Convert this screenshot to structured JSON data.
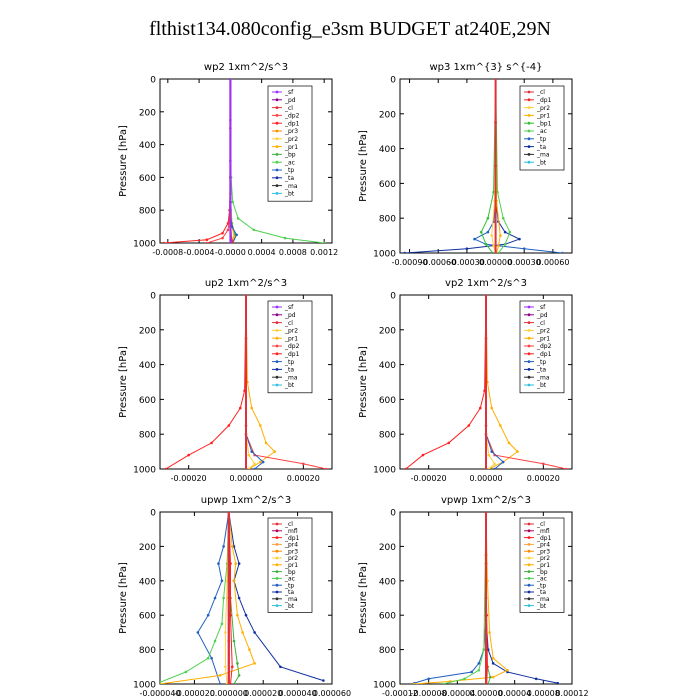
{
  "title": "flthist134.080config_e3sm  BUDGET at240E,29N",
  "colors": {
    "sf": "#9b30ff",
    "pd": "#8b008b",
    "cl": "#e0303a",
    "mfl": "#b0005a",
    "dp1": "#ff2020",
    "dp2": "#ff4040",
    "pr1": "#ffb000",
    "pr2": "#ffd040",
    "pr3": "#ff8c00",
    "pr4": "#ffa040",
    "bp": "#40b040",
    "bp1": "#30c030",
    "ac": "#50d050",
    "tp": "#2060c0",
    "ta": "#1030a0",
    "ma": "#303030",
    "bt": "#30c0e0"
  },
  "chart_data": [
    {
      "type": "line",
      "title": "wp2  1xm^2/s^3",
      "ylabel": "Pressure [hPa]",
      "xlim": [
        -0.0009,
        0.0013
      ],
      "ylim": [
        1000,
        0
      ],
      "xticks": [
        -0.0008,
        -0.0004,
        -0.0,
        0.0004,
        0.0008,
        0.0012
      ],
      "xticklabels": [
        "-0.0008",
        "-0.0004",
        "-0.0000",
        "0.0004",
        "0.0008",
        "0.0012"
      ],
      "yticks": [
        0,
        200,
        400,
        600,
        800,
        1000
      ],
      "legend": [
        "_sf",
        "_pd",
        "_cl",
        "_dp2",
        "_dp1",
        "_pr3",
        "_pr2",
        "_pr1",
        "_bp",
        "_ac",
        "_tp",
        "_ta",
        "_ma",
        "_bt"
      ],
      "series": [
        {
          "key": "dp1",
          "x": [
            0,
            0,
            0,
            -1e-05,
            -3e-05,
            -0.0001,
            -0.0003,
            -0.00085
          ],
          "y": [
            0,
            300,
            600,
            800,
            880,
            940,
            980,
            1000
          ]
        },
        {
          "key": "dp2",
          "x": [
            0,
            0,
            -1e-05,
            -3e-05,
            -0.0001,
            -0.0003
          ],
          "y": [
            0,
            600,
            850,
            920,
            970,
            1000
          ]
        },
        {
          "key": "ac",
          "x": [
            0,
            1e-05,
            3e-05,
            0.0001,
            0.0003,
            0.0007,
            0.0012
          ],
          "y": [
            0,
            600,
            750,
            850,
            920,
            970,
            1000
          ]
        },
        {
          "key": "bp",
          "x": [
            0,
            0,
            2e-05,
            6e-05,
            3e-05
          ],
          "y": [
            0,
            700,
            880,
            950,
            1000
          ]
        },
        {
          "key": "pr1",
          "x": [
            0,
            0,
            2e-05,
            5e-05,
            2e-05
          ],
          "y": [
            0,
            700,
            900,
            960,
            1000
          ]
        },
        {
          "key": "tp",
          "x": [
            0,
            0,
            2e-05,
            8e-05,
            3e-05
          ],
          "y": [
            0,
            800,
            900,
            950,
            1000
          ]
        },
        {
          "key": "cl",
          "x": [
            0,
            0,
            0,
            1e-05,
            3e-05
          ],
          "y": [
            0,
            600,
            900,
            970,
            1000
          ]
        },
        {
          "key": "sf",
          "x": [
            0,
            0,
            0,
            0,
            0
          ],
          "y": [
            0,
            250,
            500,
            750,
            1000
          ]
        }
      ]
    },
    {
      "type": "line",
      "title": "wp3  1xm^{3} s^{-4}",
      "ylabel": "Pressure [hPa]",
      "xlim": [
        -0.001,
        0.0008
      ],
      "ylim": [
        1000,
        0
      ],
      "xticks": [
        -0.0009,
        -0.0006,
        -0.0003,
        0.0,
        0.0003,
        0.0006
      ],
      "xticklabels": [
        "-0.00090",
        "-0.00060",
        "-0.00030",
        "0.00000",
        "0.00030",
        "0.00060"
      ],
      "yticks": [
        0,
        200,
        400,
        600,
        800,
        1000
      ],
      "legend": [
        "_cl",
        "_dp1",
        "_pr2",
        "_pr1",
        "_bp1",
        "_ac",
        "_tp",
        "_ta",
        "_ma",
        "_bt"
      ],
      "series": [
        {
          "key": "ta",
          "x": [
            0,
            0,
            3e-05,
            0.0001,
            0.00025,
            0.0001,
            -0.0003,
            -0.00095
          ],
          "y": [
            0,
            700,
            820,
            880,
            920,
            950,
            975,
            1000
          ]
        },
        {
          "key": "tp",
          "x": [
            0,
            0,
            -2e-05,
            -8e-05,
            -0.00022,
            -0.0001,
            0.0003,
            0.0007
          ],
          "y": [
            0,
            700,
            820,
            880,
            920,
            950,
            975,
            1000
          ]
        },
        {
          "key": "ac",
          "x": [
            0,
            2e-05,
            8e-05,
            0.00015,
            0.0001,
            3e-05
          ],
          "y": [
            0,
            650,
            800,
            880,
            950,
            1000
          ]
        },
        {
          "key": "bp1",
          "x": [
            0,
            -2e-05,
            -8e-05,
            -0.00015,
            -0.0001,
            -3e-05
          ],
          "y": [
            0,
            650,
            800,
            880,
            950,
            1000
          ]
        },
        {
          "key": "pr1",
          "x": [
            0,
            1e-05,
            5e-05,
            3e-05,
            1e-05
          ],
          "y": [
            0,
            700,
            900,
            960,
            1000
          ]
        },
        {
          "key": "pr2",
          "x": [
            0,
            -1e-05,
            -4e-05,
            -2e-05,
            0
          ],
          "y": [
            0,
            700,
            900,
            960,
            1000
          ]
        },
        {
          "key": "dp1",
          "x": [
            0,
            0,
            0,
            0,
            0
          ],
          "y": [
            0,
            250,
            500,
            750,
            1000
          ]
        },
        {
          "key": "cl",
          "x": [
            0,
            0,
            0,
            0,
            0
          ],
          "y": [
            0,
            250,
            500,
            750,
            1000
          ]
        }
      ]
    },
    {
      "type": "line",
      "title": "up2  1xm^2/s^3",
      "ylabel": "Pressure [hPa]",
      "xlim": [
        -0.0003,
        0.0003
      ],
      "ylim": [
        1000,
        0
      ],
      "xticks": [
        -0.0002,
        0.0,
        0.0002
      ],
      "xticklabels": [
        "-0.00020",
        "0.00000",
        "0.00020"
      ],
      "yticks": [
        0,
        200,
        400,
        600,
        800,
        1000
      ],
      "legend": [
        "_sf",
        "_pd",
        "_cl",
        "_pr2",
        "_pr1",
        "_dp2",
        "_dp1",
        "_tp",
        "_ta",
        "_ma",
        "_bt"
      ],
      "series": [
        {
          "key": "pr1",
          "x": [
            0,
            5e-06,
            2e-05,
            5e-05,
            7e-05,
            0.0001,
            5e-05,
            1e-05
          ],
          "y": [
            0,
            500,
            650,
            750,
            850,
            900,
            960,
            1000
          ]
        },
        {
          "key": "dp1",
          "x": [
            0,
            -5e-06,
            -2e-05,
            -6e-05,
            -0.00012,
            -0.0002,
            -0.00028
          ],
          "y": [
            0,
            550,
            650,
            750,
            850,
            920,
            1000
          ]
        },
        {
          "key": "dp2",
          "x": [
            0,
            0,
            3e-05,
            0.0002,
            0.00028
          ],
          "y": [
            0,
            800,
            920,
            970,
            1000
          ]
        },
        {
          "key": "tp",
          "x": [
            0,
            0,
            2e-05,
            6e-05,
            3e-05
          ],
          "y": [
            0,
            800,
            900,
            960,
            1000
          ]
        },
        {
          "key": "pr2",
          "x": [
            0,
            0,
            1e-05,
            3e-05,
            1e-05
          ],
          "y": [
            0,
            800,
            920,
            970,
            1000
          ]
        },
        {
          "key": "cl",
          "x": [
            0,
            0,
            0,
            0,
            0
          ],
          "y": [
            0,
            250,
            500,
            750,
            1000
          ]
        }
      ]
    },
    {
      "type": "line",
      "title": "vp2  1xm^2/s^3",
      "ylabel": "Pressure [hPa]",
      "xlim": [
        -0.0003,
        0.0003
      ],
      "ylim": [
        1000,
        0
      ],
      "xticks": [
        -0.0002,
        0.0,
        0.0002
      ],
      "xticklabels": [
        "-0.00020",
        "0.00000",
        "0.00020"
      ],
      "yticks": [
        0,
        200,
        400,
        600,
        800,
        1000
      ],
      "legend": [
        "_sf",
        "_pd",
        "_cl",
        "_pr2",
        "_pr1",
        "_dp2",
        "_dp1",
        "_tp",
        "_ta",
        "_ma",
        "_bt"
      ],
      "series": [
        {
          "key": "pr1",
          "x": [
            0,
            5e-06,
            2e-05,
            5e-05,
            8e-05,
            0.00011,
            6e-05,
            1e-05
          ],
          "y": [
            0,
            500,
            650,
            750,
            850,
            900,
            960,
            1000
          ]
        },
        {
          "key": "dp1",
          "x": [
            0,
            -5e-06,
            -2e-05,
            -6e-05,
            -0.00013,
            -0.00022,
            -0.00028
          ],
          "y": [
            0,
            550,
            650,
            750,
            850,
            920,
            1000
          ]
        },
        {
          "key": "dp2",
          "x": [
            0,
            0,
            3e-05,
            0.0002,
            0.00028
          ],
          "y": [
            0,
            800,
            920,
            970,
            1000
          ]
        },
        {
          "key": "tp",
          "x": [
            0,
            0,
            2e-05,
            6e-05,
            3e-05
          ],
          "y": [
            0,
            800,
            900,
            960,
            1000
          ]
        },
        {
          "key": "pr2",
          "x": [
            0,
            0,
            1e-05,
            3e-05,
            1e-05
          ],
          "y": [
            0,
            800,
            920,
            970,
            1000
          ]
        },
        {
          "key": "cl",
          "x": [
            0,
            0,
            0,
            0,
            0
          ],
          "y": [
            0,
            250,
            500,
            750,
            1000
          ]
        }
      ]
    },
    {
      "type": "line",
      "title": "upwp  1xm^2/s^3",
      "ylabel": "Pressure [hPa]",
      "xlim": [
        -4e-05,
        6e-05
      ],
      "ylim": [
        1000,
        0
      ],
      "xticks": [
        -4e-05,
        -2e-05,
        0.0,
        2e-05,
        4e-05,
        6e-05
      ],
      "xticklabels": [
        "-0.000040",
        "-0.000020",
        "0.000000",
        "0.000020",
        "0.000040",
        "0.000060"
      ],
      "yticks": [
        0,
        200,
        400,
        600,
        800,
        1000
      ],
      "legend": [
        "_cl",
        "_mfl",
        "_dp1",
        "_pr4",
        "_pr3",
        "_pr2",
        "_pr1",
        "_bp",
        "_ac",
        "_tp",
        "_ta",
        "_ma",
        "_bt"
      ],
      "series": [
        {
          "key": "tp",
          "x": [
            0,
            -3e-06,
            -6e-06,
            -4e-06,
            -8e-06,
            -1.2e-05,
            -1.8e-05,
            -1e-05,
            -5e-06
          ],
          "y": [
            0,
            200,
            300,
            400,
            500,
            600,
            700,
            850,
            1000
          ]
        },
        {
          "key": "ta",
          "x": [
            0,
            3e-06,
            6e-06,
            3e-06,
            6e-06,
            1e-05,
            1.5e-05,
            3e-05,
            5.5e-05
          ],
          "y": [
            0,
            200,
            300,
            400,
            500,
            600,
            700,
            900,
            980
          ]
        },
        {
          "key": "pr1",
          "x": [
            0,
            2e-06,
            4e-06,
            3e-06,
            5e-06,
            8e-06,
            1.2e-05,
            1.5e-05,
            -5e-06,
            -4e-05
          ],
          "y": [
            0,
            200,
            300,
            400,
            600,
            700,
            800,
            880,
            950,
            1000
          ]
        },
        {
          "key": "ac",
          "x": [
            0,
            -1e-06,
            -3e-06,
            -4e-06,
            -8e-06,
            -1.2e-05,
            -2.5e-05,
            -4e-05
          ],
          "y": [
            0,
            300,
            500,
            650,
            750,
            850,
            930,
            990
          ]
        },
        {
          "key": "bp",
          "x": [
            0,
            1e-06,
            3e-06,
            5e-06,
            6e-06,
            3e-06
          ],
          "y": [
            0,
            500,
            750,
            880,
            950,
            1000
          ]
        },
        {
          "key": "pr2",
          "x": [
            0,
            -1e-06,
            -2e-06,
            -2e-06,
            -1e-06
          ],
          "y": [
            0,
            400,
            700,
            900,
            1000
          ]
        },
        {
          "key": "dp1",
          "x": [
            0,
            1e-06,
            1e-06,
            2e-06,
            1e-06
          ],
          "y": [
            0,
            300,
            600,
            900,
            1000
          ]
        },
        {
          "key": "mfl",
          "x": [
            0,
            0,
            0,
            0,
            0
          ],
          "y": [
            0,
            250,
            500,
            750,
            1000
          ]
        },
        {
          "key": "cl",
          "x": [
            0,
            0,
            0,
            0,
            0
          ],
          "y": [
            0,
            250,
            500,
            750,
            1000
          ]
        }
      ]
    },
    {
      "type": "line",
      "title": "vpwp  1xm^2/s^3",
      "ylabel": "Pressure [hPa]",
      "xlim": [
        -0.00012,
        0.00012
      ],
      "ylim": [
        1000,
        0
      ],
      "xticks": [
        -0.00012,
        -8e-05,
        -4e-05,
        0.0,
        4e-05,
        8e-05,
        0.00012
      ],
      "xticklabels": [
        "-0.00012",
        "-0.00008",
        "-0.00004",
        "0.00000",
        "0.00004",
        "0.00008",
        "0.00012"
      ],
      "yticks": [
        0,
        200,
        400,
        600,
        800,
        1000
      ],
      "legend": [
        "_cl",
        "_mfl",
        "_dp1",
        "_pr4",
        "_pr3",
        "_pr2",
        "_pr1",
        "_bp",
        "_ac",
        "_tp",
        "_ta",
        "_ma",
        "_bt"
      ],
      "series": [
        {
          "key": "ta",
          "x": [
            0,
            0,
            3e-06,
            1e-05,
            3e-05,
            7e-05,
            0.0001
          ],
          "y": [
            0,
            600,
            800,
            880,
            930,
            970,
            995
          ]
        },
        {
          "key": "tp",
          "x": [
            0,
            0,
            -3e-06,
            -1e-05,
            -2e-05,
            -8e-05,
            -0.0001
          ],
          "y": [
            0,
            600,
            800,
            880,
            930,
            970,
            995
          ]
        },
        {
          "key": "pr1",
          "x": [
            0,
            2e-06,
            5e-06,
            1e-05,
            3e-05,
            1e-05,
            -5e-05,
            -0.0001
          ],
          "y": [
            0,
            400,
            700,
            850,
            920,
            960,
            985,
            1000
          ]
        },
        {
          "key": "ac",
          "x": [
            0,
            -3e-06,
            -1e-05,
            -3e-05,
            -6e-05
          ],
          "y": [
            0,
            800,
            920,
            970,
            1000
          ]
        },
        {
          "key": "bp",
          "x": [
            0,
            0,
            2e-06,
            6e-06,
            3e-06
          ],
          "y": [
            0,
            700,
            900,
            960,
            1000
          ]
        },
        {
          "key": "dp1",
          "x": [
            0,
            0,
            1e-06,
            2e-06,
            1e-06
          ],
          "y": [
            0,
            300,
            600,
            900,
            1000
          ]
        },
        {
          "key": "cl",
          "x": [
            0,
            0,
            0,
            0,
            0
          ],
          "y": [
            0,
            250,
            500,
            750,
            1000
          ]
        }
      ]
    }
  ]
}
